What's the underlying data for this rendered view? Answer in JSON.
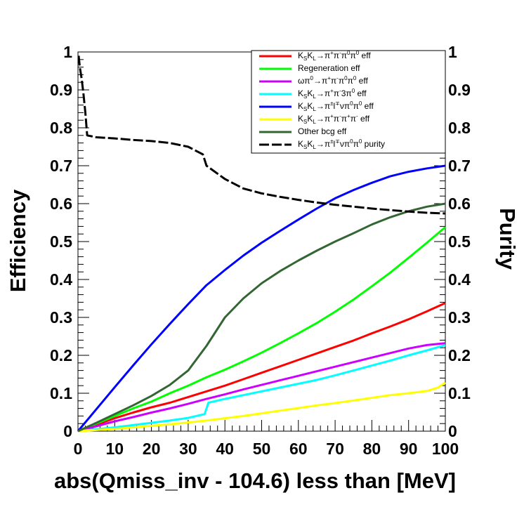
{
  "chart_data": {
    "type": "line",
    "xlabel": "abs(Qmiss_inv - 104.6) less than [MeV]",
    "ylabel_left": "Efficiency",
    "ylabel_right": "Purity",
    "xlim": [
      0,
      100
    ],
    "ylim": [
      0,
      1
    ],
    "x_ticks": [
      "0",
      "10",
      "20",
      "30",
      "40",
      "50",
      "60",
      "70",
      "80",
      "90",
      "100"
    ],
    "y_ticks": [
      "0",
      "0.1",
      "0.2",
      "0.3",
      "0.4",
      "0.5",
      "0.6",
      "0.7",
      "0.8",
      "0.9",
      "1"
    ],
    "grid": false,
    "legend_position": "top-right",
    "series": [
      {
        "name": "K<sub>S</sub>K<sub>L</sub>→π<sup>+</sup>π<sup>-</sup>π<sup>0</sup>π<sup>0</sup> eff",
        "color": "#ff0000",
        "style": "solid",
        "x": [
          0,
          5,
          10,
          15,
          20,
          25,
          30,
          35,
          40,
          45,
          50,
          55,
          60,
          65,
          70,
          75,
          80,
          85,
          90,
          95,
          100
        ],
        "y": [
          0,
          0.017,
          0.034,
          0.049,
          0.063,
          0.075,
          0.09,
          0.105,
          0.12,
          0.137,
          0.154,
          0.171,
          0.188,
          0.205,
          0.222,
          0.239,
          0.258,
          0.276,
          0.295,
          0.316,
          0.338
        ]
      },
      {
        "name": "Regeneration eff",
        "color": "#00ff00",
        "style": "solid",
        "x": [
          0,
          5,
          10,
          15,
          20,
          25,
          30,
          35,
          40,
          45,
          50,
          55,
          60,
          65,
          70,
          75,
          80,
          85,
          90,
          95,
          100
        ],
        "y": [
          0,
          0.02,
          0.04,
          0.06,
          0.078,
          0.1,
          0.12,
          0.142,
          0.162,
          0.184,
          0.207,
          0.232,
          0.258,
          0.285,
          0.315,
          0.347,
          0.382,
          0.418,
          0.457,
          0.497,
          0.538
        ]
      },
      {
        "name": "ωπ<sup>0</sup>→π<sup>+</sup>π<sup>-</sup>π<sup>0</sup>π<sup>0</sup> eff",
        "color": "#cc00ff",
        "style": "solid",
        "x": [
          0,
          5,
          10,
          15,
          20,
          25,
          30,
          35,
          40,
          45,
          50,
          55,
          60,
          65,
          70,
          75,
          80,
          85,
          90,
          95,
          100
        ],
        "y": [
          0,
          0.013,
          0.026,
          0.037,
          0.049,
          0.06,
          0.072,
          0.085,
          0.097,
          0.11,
          0.122,
          0.134,
          0.146,
          0.158,
          0.17,
          0.182,
          0.194,
          0.206,
          0.218,
          0.227,
          0.232
        ]
      },
      {
        "name": "K<sub>S</sub>K<sub>L</sub>→π<sup>+</sup>π<sup>-</sup>3π<sup>0</sup> eff",
        "color": "#00ffff",
        "style": "solid",
        "x": [
          0,
          5,
          10,
          15,
          20,
          25,
          30,
          34.5,
          35.5,
          40,
          45,
          50,
          55,
          60,
          65,
          70,
          75,
          80,
          85,
          90,
          95,
          100
        ],
        "y": [
          0,
          0.005,
          0.01,
          0.016,
          0.022,
          0.028,
          0.035,
          0.045,
          0.075,
          0.085,
          0.095,
          0.105,
          0.115,
          0.125,
          0.135,
          0.147,
          0.16,
          0.173,
          0.186,
          0.2,
          0.213,
          0.227
        ]
      },
      {
        "name": "K<sub>S</sub>K<sub>L</sub>→π<sup>±</sup>l<sup>∓</sup>νπ<sup>0</sup>π<sup>0</sup> eff",
        "color": "#0000ff",
        "style": "solid",
        "x": [
          0,
          5,
          10,
          15,
          20,
          25,
          30,
          35,
          40,
          45,
          50,
          55,
          60,
          65,
          70,
          75,
          80,
          85,
          90,
          95,
          100
        ],
        "y": [
          0,
          0.058,
          0.116,
          0.173,
          0.229,
          0.283,
          0.335,
          0.385,
          0.425,
          0.463,
          0.497,
          0.528,
          0.558,
          0.587,
          0.614,
          0.636,
          0.655,
          0.672,
          0.684,
          0.693,
          0.7
        ]
      },
      {
        "name": "K<sub>S</sub>K<sub>L</sub>→π<sup>+</sup>π<sup>-</sup>π<sup>+</sup>π<sup>-</sup> eff",
        "color": "#ffff00",
        "style": "solid",
        "x": [
          0,
          5,
          10,
          15,
          20,
          25,
          30,
          35,
          40,
          45,
          50,
          55,
          60,
          65,
          70,
          75,
          80,
          85,
          90,
          95,
          98,
          100
        ],
        "y": [
          0,
          0.003,
          0.006,
          0.01,
          0.014,
          0.018,
          0.023,
          0.028,
          0.034,
          0.04,
          0.047,
          0.054,
          0.061,
          0.068,
          0.074,
          0.081,
          0.088,
          0.095,
          0.1,
          0.106,
          0.115,
          0.128
        ]
      },
      {
        "name": "Other bcg eff",
        "color": "#336633",
        "style": "solid",
        "x": [
          0,
          5,
          10,
          15,
          20,
          25,
          30,
          35,
          40,
          45,
          50,
          55,
          60,
          65,
          70,
          75,
          80,
          85,
          90,
          95,
          100
        ],
        "y": [
          0,
          0.022,
          0.045,
          0.068,
          0.093,
          0.122,
          0.16,
          0.225,
          0.3,
          0.35,
          0.39,
          0.422,
          0.45,
          0.476,
          0.5,
          0.522,
          0.545,
          0.564,
          0.58,
          0.592,
          0.6
        ]
      },
      {
        "name": "K<sub>S</sub>K<sub>L</sub>→π<sup>±</sup>l<sup>∓</sup>νπ<sup>0</sup>π<sup>0</sup> purity",
        "color": "#000000",
        "style": "dashed",
        "x": [
          0.2,
          0.5,
          1,
          1.5,
          2,
          2.5,
          5,
          10,
          15,
          20,
          25,
          30,
          34,
          35,
          40,
          45,
          50,
          55,
          60,
          65,
          70,
          75,
          80,
          85,
          90,
          95,
          100
        ],
        "y": [
          0.99,
          0.96,
          0.93,
          0.89,
          0.84,
          0.78,
          0.775,
          0.772,
          0.768,
          0.765,
          0.76,
          0.75,
          0.73,
          0.7,
          0.665,
          0.64,
          0.627,
          0.618,
          0.61,
          0.603,
          0.597,
          0.592,
          0.587,
          0.583,
          0.579,
          0.576,
          0.574
        ]
      }
    ]
  }
}
